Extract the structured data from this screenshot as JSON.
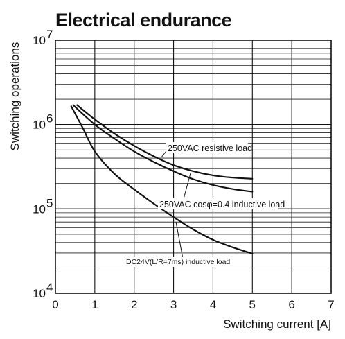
{
  "chart_data": {
    "type": "line",
    "title": "Electrical endurance",
    "xlabel": "Switching current [A]",
    "ylabel": "Switching operations",
    "xlim": [
      0,
      7
    ],
    "ylim": [
      10000,
      10000000
    ],
    "yscale": "log",
    "grid": true,
    "x_ticks": [
      "0",
      "1",
      "2",
      "3",
      "4",
      "5",
      "6",
      "7"
    ],
    "y_ticks": [
      {
        "base": "10",
        "exp": "4",
        "value": 10000
      },
      {
        "base": "10",
        "exp": "5",
        "value": 100000
      },
      {
        "base": "10",
        "exp": "6",
        "value": 1000000
      },
      {
        "base": "10",
        "exp": "7",
        "value": 10000000
      }
    ],
    "series": [
      {
        "name": "250VAC resistive load",
        "x": [
          0.55,
          1.0,
          1.5,
          2.0,
          2.5,
          3.0,
          3.5,
          4.0,
          4.5,
          5.0
        ],
        "y": [
          1700000,
          1150000,
          780000,
          560000,
          420000,
          330000,
          280000,
          250000,
          235000,
          228000
        ]
      },
      {
        "name": "250VAC cosφ=0.4 inductive load",
        "x": [
          0.45,
          1.0,
          1.5,
          2.0,
          2.5,
          3.0,
          3.5,
          4.0,
          4.5,
          5.0
        ],
        "y": [
          1700000,
          1000000,
          680000,
          480000,
          360000,
          280000,
          225000,
          192000,
          172000,
          160000
        ]
      },
      {
        "name": "DC24V(L/R=7ms) inductive load",
        "x": [
          0.4,
          0.7,
          1.0,
          1.5,
          2.0,
          2.5,
          3.0,
          3.5,
          4.0,
          4.5,
          5.0
        ],
        "y": [
          1650000,
          900000,
          480000,
          260000,
          170000,
          115000,
          80000,
          57000,
          43000,
          35000,
          29500
        ]
      }
    ]
  }
}
